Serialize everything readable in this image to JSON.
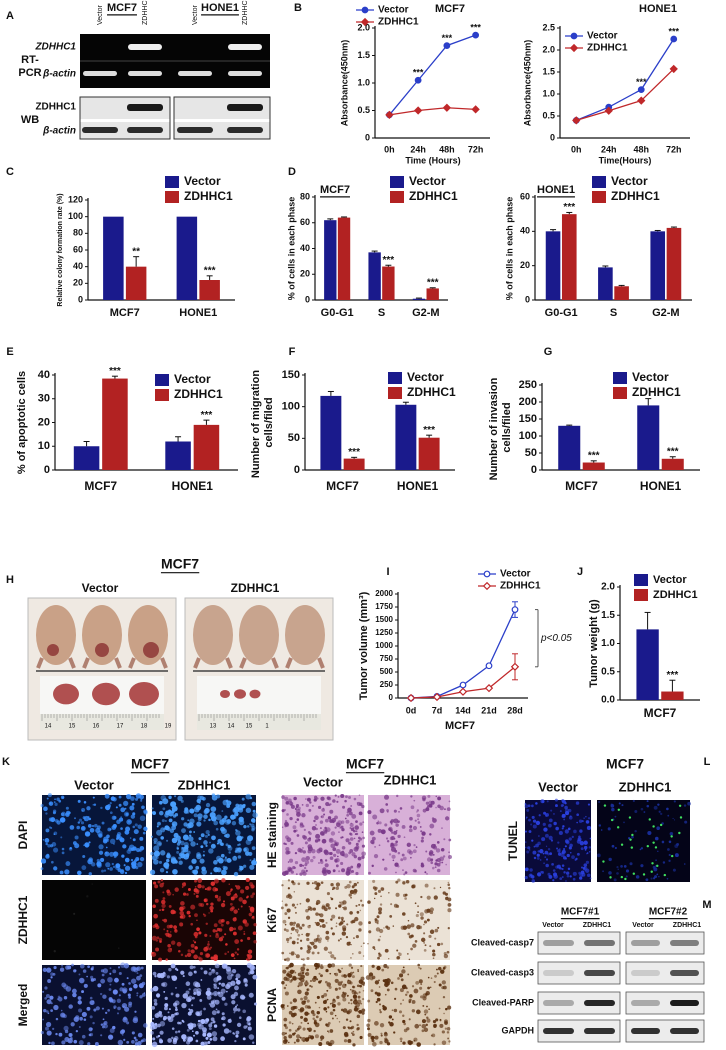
{
  "panels": [
    "A",
    "B",
    "C",
    "D",
    "E",
    "F",
    "G",
    "H",
    "I",
    "J",
    "K",
    "L",
    "M"
  ],
  "gel": {
    "groups": [
      "MCF7",
      "HONE1"
    ],
    "lanes": [
      "Vector",
      "ZDHHC1",
      "Vector",
      "ZDHHC1"
    ],
    "rtpcr_label": [
      "RT-",
      "PCR"
    ],
    "rtpcr_rows": [
      "ZDHHC1",
      "β-actin"
    ],
    "wb_label": "WB",
    "wb_rows": [
      "ZDHHC1",
      "β-actin"
    ]
  },
  "mice": {
    "title": "MCF7",
    "groups": [
      "Vector",
      "ZDHHC1"
    ],
    "rulers": [
      [
        "14",
        "15",
        "16",
        "17",
        "18",
        "19"
      ],
      [
        "13",
        "14",
        "15",
        "1"
      ]
    ]
  },
  "ihc": {
    "left": {
      "title": "MCF7",
      "columns": [
        "Vector",
        "ZDHHC1"
      ],
      "rows": [
        "DAPI",
        "ZDHHC1",
        "Merged"
      ]
    },
    "right": {
      "title": "MCF7",
      "columns": [
        "Vector",
        "ZDHHC1"
      ],
      "rows": [
        "HE staining",
        "Ki67",
        "PCNA"
      ]
    }
  },
  "tunel": {
    "title": "MCF7",
    "columns": [
      "Vector",
      "ZDHHC1"
    ],
    "row": "TUNEL"
  },
  "western": {
    "groups": [
      "MCF7#1",
      "MCF7#2"
    ],
    "lanes": [
      "Vector",
      "ZDHHC1",
      "Vector",
      "ZDHHC1"
    ],
    "rows": [
      "Cleaved-casp7",
      "Cleaved-casp3",
      "Cleaved-PARP",
      "GAPDH"
    ]
  },
  "chart_data": [
    {
      "type": "line",
      "title": "MCF7",
      "ylabel": "Absorbance(450nm)",
      "xlabel": "Time (Hours)",
      "categories": [
        "0h",
        "24h",
        "48h",
        "72h"
      ],
      "series": [
        {
          "name": "Vector",
          "color": "#2b3fc9",
          "values": [
            0.42,
            1.05,
            1.68,
            1.87
          ],
          "annotations": [
            null,
            "***",
            "***",
            "***"
          ]
        },
        {
          "name": "ZDHHC1",
          "color": "#c0282a",
          "values": [
            0.42,
            0.5,
            0.55,
            0.52
          ]
        }
      ],
      "ylim": [
        0,
        2.0
      ],
      "yticks": [
        0,
        0.5,
        {
          "value": 1,
          "label": "1.0"
        },
        1.5,
        {
          "value": 2,
          "label": "2.0"
        }
      ]
    },
    {
      "type": "line",
      "title": "HONE1",
      "ylabel": "Absorbance(450nm)",
      "xlabel": "Time(Hours)",
      "categories": [
        "0h",
        "24h",
        "48h",
        "72h"
      ],
      "series": [
        {
          "name": "Vector",
          "color": "#2b3fc9",
          "values": [
            0.4,
            0.7,
            1.1,
            2.25
          ],
          "annotations": [
            null,
            null,
            "***",
            "***"
          ]
        },
        {
          "name": "ZDHHC1",
          "color": "#c0282a",
          "values": [
            0.4,
            0.62,
            0.85,
            1.57
          ]
        }
      ],
      "ylim": [
        0,
        2.5
      ],
      "yticks": [
        0,
        0.5,
        {
          "value": 1,
          "label": "1.0"
        },
        1.5,
        {
          "value": 2,
          "label": "2.0"
        },
        2.5
      ]
    },
    {
      "type": "bar",
      "ylabel": "Relative colony formation rate (%)",
      "categories": [
        "MCF7",
        "HONE1"
      ],
      "series": [
        {
          "name": "Vector",
          "color": "#1a1a8c",
          "values": [
            100,
            100
          ]
        },
        {
          "name": "ZDHHC1",
          "color": "#b22222",
          "values": [
            40,
            24
          ],
          "errors": [
            12,
            5
          ],
          "annotations": [
            "**",
            "***"
          ]
        }
      ],
      "ylim": [
        0,
        120
      ],
      "yticks": [
        0,
        20,
        40,
        60,
        80,
        100,
        120
      ]
    },
    {
      "type": "bar",
      "label": "MCF7",
      "ylabel": "% of cells in each phase",
      "categories": [
        "G0-G1",
        "S",
        "G2-M"
      ],
      "series": [
        {
          "name": "Vector",
          "color": "#1a1a8c",
          "values": [
            62,
            37,
            1
          ],
          "errors": [
            1,
            1,
            0.5
          ]
        },
        {
          "name": "ZDHHC1",
          "color": "#b22222",
          "values": [
            64,
            26,
            9
          ],
          "errors": [
            0.5,
            1,
            0.5
          ],
          "annotations": [
            null,
            "***",
            "***"
          ]
        }
      ],
      "ylim": [
        0,
        80
      ],
      "yticks": [
        0,
        20,
        40,
        60,
        80
      ]
    },
    {
      "type": "bar",
      "label": "HONE1",
      "ylabel": "% of cells in each phase",
      "categories": [
        "G0-G1",
        "S",
        "G2-M"
      ],
      "series": [
        {
          "name": "Vector",
          "color": "#1a1a8c",
          "values": [
            40,
            19,
            40
          ],
          "errors": [
            1,
            0.8,
            0.5
          ]
        },
        {
          "name": "ZDHHC1",
          "color": "#b22222",
          "values": [
            50,
            8,
            42
          ],
          "errors": [
            1,
            0.5,
            0.5
          ],
          "annotations": [
            "***",
            null,
            null
          ]
        }
      ],
      "ylim": [
        0,
        60
      ],
      "yticks": [
        0,
        20,
        40,
        60
      ]
    },
    {
      "type": "bar",
      "ylabel": "% of apoptotic cells",
      "categories": [
        "MCF7",
        "HONE1"
      ],
      "series": [
        {
          "name": "Vector",
          "color": "#1a1a8c",
          "values": [
            10,
            12
          ],
          "errors": [
            2,
            2
          ]
        },
        {
          "name": "ZDHHC1",
          "color": "#b22222",
          "values": [
            38.5,
            19
          ],
          "errors": [
            1,
            2
          ],
          "annotations": [
            "***",
            "***"
          ]
        }
      ],
      "ylim": [
        0,
        40
      ],
      "yticks": [
        0,
        10,
        20,
        30,
        40
      ]
    },
    {
      "type": "bar",
      "ylabel": "Number of migration cells/filed",
      "categories": [
        "MCF7",
        "HONE1"
      ],
      "series": [
        {
          "name": "Vector",
          "color": "#1a1a8c",
          "values": [
            117,
            103
          ],
          "errors": [
            7,
            4
          ]
        },
        {
          "name": "ZDHHC1",
          "color": "#b22222",
          "values": [
            18,
            51
          ],
          "errors": [
            2,
            4
          ],
          "annotations": [
            "***",
            "***"
          ]
        }
      ],
      "ylim": [
        0,
        150
      ],
      "yticks": [
        0,
        50,
        100,
        150
      ]
    },
    {
      "type": "bar",
      "ylabel": "Number of invasion cells/filed",
      "categories": [
        "MCF7",
        "HONE1"
      ],
      "series": [
        {
          "name": "Vector",
          "color": "#1a1a8c",
          "values": [
            130,
            190
          ],
          "errors": [
            2,
            20
          ]
        },
        {
          "name": "ZDHHC1",
          "color": "#b22222",
          "values": [
            22,
            33
          ],
          "errors": [
            5,
            6
          ],
          "annotations": [
            "***",
            "***"
          ]
        }
      ],
      "ylim": [
        0,
        250
      ],
      "yticks": [
        0,
        50,
        100,
        150,
        200,
        250
      ]
    },
    {
      "type": "line",
      "ylabel": "Tumor volume (mm³)",
      "xlabel": "MCF7",
      "annotation": "p<0.05",
      "categories": [
        "0d",
        "7d",
        "14d",
        "21d",
        "28d"
      ],
      "series": [
        {
          "name": "Vector",
          "color": "#2b3fc9",
          "values": [
            0,
            30,
            250,
            620,
            1700
          ],
          "errors": [
            0,
            0,
            0,
            0,
            150
          ]
        },
        {
          "name": "ZDHHC1",
          "color": "#c0282a",
          "values": [
            0,
            20,
            120,
            190,
            600
          ],
          "errors": [
            0,
            0,
            0,
            0,
            250
          ]
        }
      ],
      "ylim": [
        0,
        2000
      ],
      "yticks": [
        0,
        250,
        500,
        750,
        1000,
        1250,
        1500,
        1750,
        2000
      ]
    },
    {
      "type": "bar",
      "ylabel": "Tumor weight (g)",
      "categories": [
        "MCF7"
      ],
      "series": [
        {
          "name": "Vector",
          "color": "#1a1a8c",
          "values": [
            1.25
          ],
          "errors": [
            0.3
          ]
        },
        {
          "name": "ZDHHC1",
          "color": "#b22222",
          "values": [
            0.15
          ],
          "errors": [
            0.2
          ],
          "annotations": [
            "***"
          ]
        }
      ],
      "ylim": [
        0,
        2.0
      ],
      "yticks": [
        {
          "value": 0,
          "label": "0.0"
        },
        0.5,
        {
          "value": 1,
          "label": "1.0"
        },
        1.5,
        {
          "value": 2,
          "label": "2.0"
        }
      ]
    }
  ]
}
